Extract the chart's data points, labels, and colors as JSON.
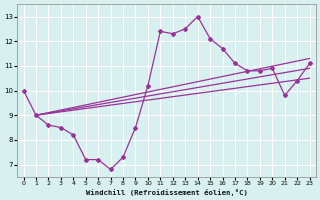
{
  "xlabel": "Windchill (Refroidissement éolien,°C)",
  "x": [
    0,
    1,
    2,
    3,
    4,
    5,
    6,
    7,
    8,
    9,
    10,
    11,
    12,
    13,
    14,
    15,
    16,
    17,
    18,
    19,
    20,
    21,
    22,
    23
  ],
  "y_main": [
    10.0,
    9.0,
    8.6,
    8.5,
    8.2,
    7.2,
    7.2,
    6.8,
    7.3,
    8.5,
    10.2,
    12.4,
    12.3,
    12.5,
    13.0,
    12.1,
    11.7,
    11.1,
    10.8,
    10.8,
    10.9,
    9.8,
    10.4,
    11.1
  ],
  "trend_lines": [
    {
      "x_start": 1,
      "y_start": 9.0,
      "x_end": 23,
      "y_end": 11.3
    },
    {
      "x_start": 1,
      "y_start": 9.0,
      "x_end": 23,
      "y_end": 10.9
    },
    {
      "x_start": 1,
      "y_start": 9.0,
      "x_end": 23,
      "y_end": 10.5
    }
  ],
  "line_color": "#993399",
  "bg_color": "#d8f0f0",
  "grid_color": "#ffffff",
  "ylim": [
    6.5,
    13.5
  ],
  "xlim": [
    -0.5,
    23.5
  ],
  "yticks": [
    7,
    8,
    9,
    10,
    11,
    12,
    13
  ],
  "xticks": [
    0,
    1,
    2,
    3,
    4,
    5,
    6,
    7,
    8,
    9,
    10,
    11,
    12,
    13,
    14,
    15,
    16,
    17,
    18,
    19,
    20,
    21,
    22,
    23
  ]
}
